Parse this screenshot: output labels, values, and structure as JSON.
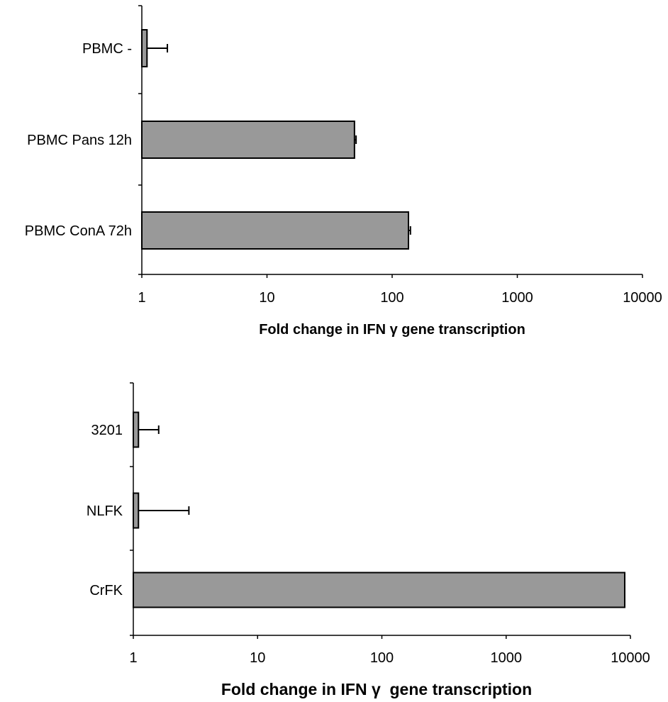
{
  "chart_data": [
    {
      "type": "bar",
      "orientation": "horizontal",
      "xscale": "log",
      "xlim": [
        1,
        10000
      ],
      "xticks": [
        "1",
        "10",
        "100",
        "1000",
        "10000"
      ],
      "xlabel": "Fold change in IFN γ gene transcription",
      "grid": false,
      "categories": [
        "PBMC -",
        "PBMC Pans 12h",
        "PBMC ConA 72h"
      ],
      "values": [
        1.1,
        50,
        135
      ],
      "error": [
        0.5,
        1.5,
        5
      ],
      "bar_color": "#999999"
    },
    {
      "type": "bar",
      "orientation": "horizontal",
      "xscale": "log",
      "xlim": [
        1,
        10000
      ],
      "xticks": [
        "1",
        "10",
        "100",
        "1000",
        "10000"
      ],
      "xlabel": "Fold change in IFN γ  gene transcription",
      "grid": false,
      "categories": [
        "3201",
        "NLFK",
        "CrFK"
      ],
      "values": [
        1.1,
        1.1,
        9000
      ],
      "error": [
        0.5,
        1.7,
        0
      ],
      "bar_color": "#999999"
    }
  ]
}
